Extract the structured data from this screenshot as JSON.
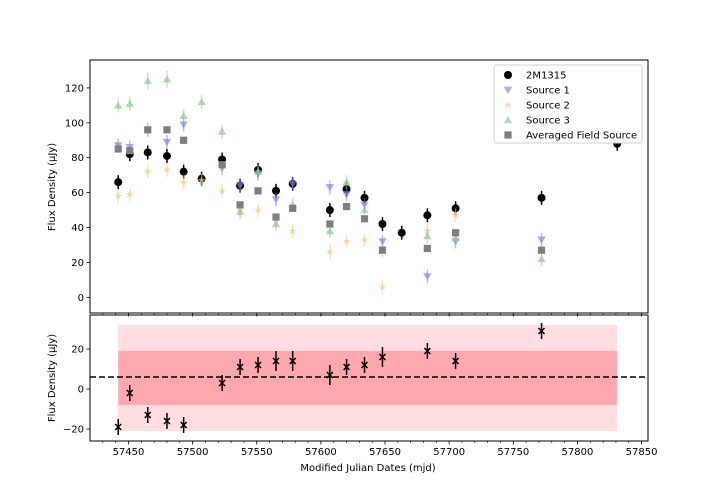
{
  "chart_data": [
    {
      "type": "scatter",
      "panel": "top",
      "title": "",
      "xlabel": "",
      "ylabel": "Flux Density (μJy)",
      "xlim": [
        57420,
        57855
      ],
      "ylim": [
        -9,
        136
      ],
      "yticks": [
        0,
        20,
        40,
        60,
        80,
        100,
        120
      ],
      "xticks": [
        57450,
        57500,
        57550,
        57600,
        57650,
        57700,
        57750,
        57800,
        57850
      ],
      "legend_position": "top-right",
      "series": [
        {
          "name": "2M1315",
          "marker": "circle",
          "color": "#000000",
          "points": [
            {
              "x": 57442,
              "y": 66,
              "err": 4
            },
            {
              "x": 57451,
              "y": 82,
              "err": 4
            },
            {
              "x": 57465,
              "y": 83,
              "err": 4
            },
            {
              "x": 57480,
              "y": 81,
              "err": 4
            },
            {
              "x": 57493,
              "y": 72,
              "err": 4
            },
            {
              "x": 57507,
              "y": 68,
              "err": 4
            },
            {
              "x": 57523,
              "y": 79,
              "err": 4
            },
            {
              "x": 57537,
              "y": 64,
              "err": 4
            },
            {
              "x": 57551,
              "y": 73,
              "err": 4
            },
            {
              "x": 57565,
              "y": 61,
              "err": 4
            },
            {
              "x": 57578,
              "y": 65,
              "err": 4
            },
            {
              "x": 57607,
              "y": 50,
              "err": 4
            },
            {
              "x": 57620,
              "y": 62,
              "err": 4
            },
            {
              "x": 57634,
              "y": 57,
              "err": 4
            },
            {
              "x": 57648,
              "y": 42,
              "err": 4
            },
            {
              "x": 57663,
              "y": 37,
              "err": 4
            },
            {
              "x": 57683,
              "y": 47,
              "err": 4
            },
            {
              "x": 57705,
              "y": 51,
              "err": 4
            },
            {
              "x": 57772,
              "y": 57,
              "err": 4
            },
            {
              "x": 57831,
              "y": 88,
              "err": 4
            }
          ]
        },
        {
          "name": "Source 1",
          "marker": "triangle-down",
          "color": "#7b7bf5",
          "points": [
            {
              "x": 57442,
              "y": 87,
              "err": 4
            },
            {
              "x": 57451,
              "y": 86,
              "err": 4
            },
            {
              "x": 57465,
              "y": 96,
              "err": 4
            },
            {
              "x": 57480,
              "y": 89,
              "err": 4
            },
            {
              "x": 57493,
              "y": 99,
              "err": 4
            },
            {
              "x": 57523,
              "y": 74,
              "err": 4
            },
            {
              "x": 57537,
              "y": 64,
              "err": 4
            },
            {
              "x": 57551,
              "y": 71,
              "err": 4
            },
            {
              "x": 57565,
              "y": 56,
              "err": 4
            },
            {
              "x": 57578,
              "y": 65,
              "err": 4
            },
            {
              "x": 57607,
              "y": 63,
              "err": 4
            },
            {
              "x": 57620,
              "y": 59,
              "err": 4
            },
            {
              "x": 57634,
              "y": 53,
              "err": 4
            },
            {
              "x": 57648,
              "y": 32,
              "err": 4
            },
            {
              "x": 57683,
              "y": 12,
              "err": 4
            },
            {
              "x": 57705,
              "y": 32,
              "err": 4
            },
            {
              "x": 57772,
              "y": 33,
              "err": 4
            }
          ]
        },
        {
          "name": "Source 2",
          "marker": "star",
          "color": "#f8c97a",
          "points": [
            {
              "x": 57442,
              "y": 58,
              "err": 4
            },
            {
              "x": 57451,
              "y": 59,
              "err": 4
            },
            {
              "x": 57465,
              "y": 72,
              "err": 4
            },
            {
              "x": 57480,
              "y": 73,
              "err": 4
            },
            {
              "x": 57493,
              "y": 66,
              "err": 4
            },
            {
              "x": 57507,
              "y": 67,
              "err": 4
            },
            {
              "x": 57523,
              "y": 61,
              "err": 4
            },
            {
              "x": 57537,
              "y": 50,
              "err": 4
            },
            {
              "x": 57551,
              "y": 50,
              "err": 4
            },
            {
              "x": 57565,
              "y": 44,
              "err": 4
            },
            {
              "x": 57578,
              "y": 38,
              "err": 4
            },
            {
              "x": 57607,
              "y": 26,
              "err": 4
            },
            {
              "x": 57620,
              "y": 32,
              "err": 4
            },
            {
              "x": 57634,
              "y": 33,
              "err": 4
            },
            {
              "x": 57648,
              "y": 6,
              "err": 4
            },
            {
              "x": 57683,
              "y": 38,
              "err": 4
            },
            {
              "x": 57705,
              "y": 47,
              "err": 4
            }
          ]
        },
        {
          "name": "Source 3",
          "marker": "triangle-up",
          "color": "#8fcb8f",
          "points": [
            {
              "x": 57442,
              "y": 110,
              "err": 4
            },
            {
              "x": 57451,
              "y": 111,
              "err": 4
            },
            {
              "x": 57465,
              "y": 124,
              "err": 5
            },
            {
              "x": 57480,
              "y": 125,
              "err": 5
            },
            {
              "x": 57493,
              "y": 104,
              "err": 4
            },
            {
              "x": 57507,
              "y": 112,
              "err": 4
            },
            {
              "x": 57523,
              "y": 95,
              "err": 4
            },
            {
              "x": 57537,
              "y": 49,
              "err": 4
            },
            {
              "x": 57551,
              "y": 72,
              "err": 4
            },
            {
              "x": 57565,
              "y": 42,
              "err": 4
            },
            {
              "x": 57578,
              "y": 53,
              "err": 4
            },
            {
              "x": 57607,
              "y": 38,
              "err": 4
            },
            {
              "x": 57620,
              "y": 66,
              "err": 4
            },
            {
              "x": 57634,
              "y": 50,
              "err": 4
            },
            {
              "x": 57648,
              "y": 27,
              "err": 4
            },
            {
              "x": 57683,
              "y": 35,
              "err": 4
            },
            {
              "x": 57705,
              "y": 34,
              "err": 4
            },
            {
              "x": 57772,
              "y": 22,
              "err": 4
            }
          ]
        },
        {
          "name": "Averaged Field Source",
          "marker": "square",
          "color": "#7f7f7f",
          "points": [
            {
              "x": 57442,
              "y": 85
            },
            {
              "x": 57451,
              "y": 84
            },
            {
              "x": 57465,
              "y": 96
            },
            {
              "x": 57480,
              "y": 96
            },
            {
              "x": 57493,
              "y": 90
            },
            {
              "x": 57523,
              "y": 76
            },
            {
              "x": 57537,
              "y": 53
            },
            {
              "x": 57551,
              "y": 61
            },
            {
              "x": 57565,
              "y": 46
            },
            {
              "x": 57578,
              "y": 51
            },
            {
              "x": 57607,
              "y": 42
            },
            {
              "x": 57620,
              "y": 52
            },
            {
              "x": 57634,
              "y": 45
            },
            {
              "x": 57648,
              "y": 27
            },
            {
              "x": 57683,
              "y": 28
            },
            {
              "x": 57705,
              "y": 37
            },
            {
              "x": 57772,
              "y": 27
            }
          ]
        }
      ]
    },
    {
      "type": "scatter",
      "panel": "bottom",
      "title": "",
      "xlabel": "Modified Julian Dates (mjd)",
      "ylabel": "Flux Density (μJy)",
      "xlim": [
        57420,
        57855
      ],
      "ylim": [
        -26,
        37
      ],
      "yticks": [
        -20,
        0,
        20
      ],
      "xticks": [
        57450,
        57500,
        57550,
        57600,
        57650,
        57700,
        57750,
        57800,
        57850
      ],
      "mean_line": 6,
      "bands": [
        {
          "x_range": [
            57442,
            57831
          ],
          "y_range": [
            -21,
            32
          ],
          "color": "#ffdde0"
        },
        {
          "x_range": [
            57442,
            57831
          ],
          "y_range": [
            -8,
            19
          ],
          "color": "#ffa8ad"
        }
      ],
      "series": [
        {
          "marker": "x",
          "color": "#000000",
          "points": [
            {
              "x": 57442,
              "y": -19,
              "err": 4
            },
            {
              "x": 57451,
              "y": -2,
              "err": 4
            },
            {
              "x": 57465,
              "y": -13,
              "err": 4
            },
            {
              "x": 57480,
              "y": -16,
              "err": 4
            },
            {
              "x": 57493,
              "y": -18,
              "err": 4
            },
            {
              "x": 57523,
              "y": 3,
              "err": 4
            },
            {
              "x": 57537,
              "y": 11,
              "err": 4
            },
            {
              "x": 57551,
              "y": 12,
              "err": 4
            },
            {
              "x": 57565,
              "y": 14,
              "err": 5
            },
            {
              "x": 57578,
              "y": 14,
              "err": 5
            },
            {
              "x": 57607,
              "y": 7,
              "err": 5
            },
            {
              "x": 57620,
              "y": 11,
              "err": 4
            },
            {
              "x": 57634,
              "y": 12,
              "err": 4
            },
            {
              "x": 57648,
              "y": 16,
              "err": 5
            },
            {
              "x": 57683,
              "y": 19,
              "err": 4
            },
            {
              "x": 57705,
              "y": 14,
              "err": 4
            },
            {
              "x": 57772,
              "y": 29,
              "err": 4
            }
          ]
        }
      ]
    }
  ]
}
